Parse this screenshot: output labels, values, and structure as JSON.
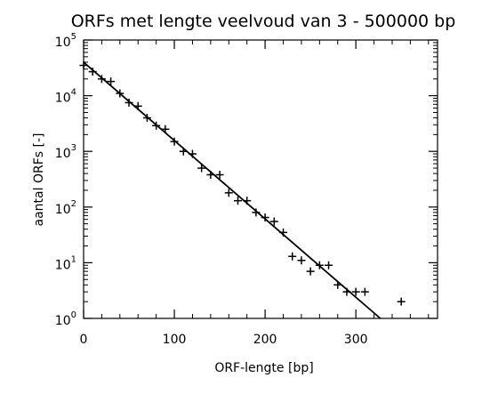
{
  "chart_data": {
    "type": "scatter",
    "title": "ORFs met lengte veelvoud van 3 - 500000 bp",
    "xlabel": "ORF-lengte [bp]",
    "ylabel": "aantal ORFs [-]",
    "xlim": [
      0,
      390
    ],
    "ylim": [
      1,
      100000
    ],
    "y_scale": "log",
    "grid": false,
    "marker": "+",
    "x_ticks": [
      0,
      100,
      200,
      300
    ],
    "x_tick_labels": [
      "0",
      "100",
      "200",
      "300"
    ],
    "y_ticks": [
      1,
      10,
      100,
      1000,
      10000,
      100000
    ],
    "y_tick_labels": [
      {
        "base": "10",
        "exp": "0"
      },
      {
        "base": "10",
        "exp": "1"
      },
      {
        "base": "10",
        "exp": "2"
      },
      {
        "base": "10",
        "exp": "3"
      },
      {
        "base": "10",
        "exp": "4"
      },
      {
        "base": "10",
        "exp": "5"
      }
    ],
    "series": [
      {
        "kind": "points",
        "x": [
          0,
          10,
          20,
          30,
          40,
          50,
          60,
          70,
          80,
          90,
          100,
          110,
          120,
          130,
          140,
          150,
          160,
          170,
          180,
          190,
          200,
          210,
          220,
          230,
          240,
          250,
          260,
          270,
          280,
          290,
          300,
          310,
          350
        ],
        "y": [
          35000,
          27000,
          20000,
          18000,
          11000,
          7500,
          6500,
          4000,
          2900,
          2500,
          1500,
          1000,
          900,
          500,
          380,
          380,
          180,
          130,
          130,
          80,
          65,
          55,
          35,
          13,
          11,
          7,
          9,
          9,
          4,
          3,
          3,
          3,
          2
        ]
      },
      {
        "kind": "fit-line",
        "x": [
          0,
          327
        ],
        "y": [
          40000,
          1
        ]
      }
    ]
  }
}
